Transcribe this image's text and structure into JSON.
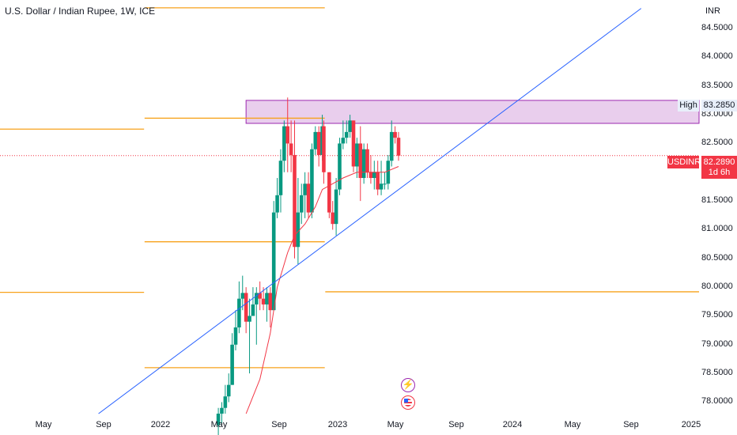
{
  "header": {
    "title": "U.S. Dollar / Indian Rupee, 1W, ICE"
  },
  "price_scale": {
    "currency": "INR",
    "labels": [
      "84.5000",
      "84.0000",
      "83.5000",
      "83.0000",
      "82.5000",
      "82.0000",
      "81.5000",
      "81.0000",
      "80.5000",
      "80.0000",
      "79.5000",
      "79.0000",
      "78.5000",
      "78.0000"
    ]
  },
  "time_scale": {
    "labels": [
      "May",
      "Sep",
      "2022",
      "May",
      "Sep",
      "2023",
      "May",
      "Sep",
      "2024",
      "May",
      "Sep",
      "2025"
    ]
  },
  "markers": {
    "high_tag": "High",
    "high_value": "83.2850",
    "symbol_tag": "USDINR",
    "last_price": "82.2890",
    "countdown": "1d 6h"
  },
  "colors": {
    "up": "#089981",
    "down": "#f23645",
    "level_line": "#f7a21b",
    "zone_fill": "#e1bee7",
    "zone_border": "#9c27b0",
    "trendline": "#2962ff",
    "moving_average": "#f23645"
  },
  "icons": [
    "lightning-event-icon",
    "us-flag-event-icon"
  ],
  "chart_data": {
    "type": "candlestick",
    "title": "U.S. Dollar / Indian Rupee, 1W, ICE",
    "interval": "1W",
    "ylim": [
      77.8,
      84.9
    ],
    "xlim": [
      "2021-03-15",
      "2025-01-25"
    ],
    "ohlc": [
      [
        "2022-05-30",
        77.6,
        77.9,
        77.4,
        77.8
      ],
      [
        "2022-06-06",
        77.8,
        78.0,
        77.6,
        77.9
      ],
      [
        "2022-06-13",
        77.9,
        78.3,
        77.8,
        78.1
      ],
      [
        "2022-06-20",
        78.1,
        78.5,
        78.0,
        78.3
      ],
      [
        "2022-06-27",
        78.3,
        79.2,
        78.3,
        79.0
      ],
      [
        "2022-07-04",
        79.0,
        79.6,
        78.9,
        79.3
      ],
      [
        "2022-07-11",
        79.3,
        80.1,
        79.2,
        79.8
      ],
      [
        "2022-07-18",
        79.8,
        80.2,
        79.6,
        79.9
      ],
      [
        "2022-07-25",
        79.9,
        80.0,
        79.2,
        79.4
      ],
      [
        "2022-08-01",
        79.4,
        79.8,
        78.5,
        79.5
      ],
      [
        "2022-08-08",
        79.5,
        80.0,
        79.5,
        79.7
      ],
      [
        "2022-08-15",
        79.7,
        80.0,
        79.0,
        79.9
      ],
      [
        "2022-08-22",
        79.9,
        80.1,
        79.6,
        79.8
      ],
      [
        "2022-08-29",
        79.8,
        80.0,
        79.6,
        79.7
      ],
      [
        "2022-09-05",
        79.7,
        80.0,
        79.4,
        79.9
      ],
      [
        "2022-09-12",
        79.9,
        80.0,
        79.3,
        79.6
      ],
      [
        "2022-09-19",
        79.6,
        81.5,
        79.6,
        81.3
      ],
      [
        "2022-09-26",
        81.3,
        81.9,
        81.2,
        81.6
      ],
      [
        "2022-10-03",
        81.6,
        82.4,
        81.3,
        82.2
      ],
      [
        "2022-10-10",
        82.2,
        82.9,
        82.0,
        82.8
      ],
      [
        "2022-10-17",
        82.8,
        83.3,
        82.0,
        82.5
      ],
      [
        "2022-10-24",
        82.5,
        82.9,
        82.0,
        82.3
      ],
      [
        "2022-10-31",
        82.3,
        82.9,
        80.5,
        80.7
      ],
      [
        "2022-11-07",
        80.7,
        81.9,
        80.4,
        81.3
      ],
      [
        "2022-11-14",
        81.3,
        81.8,
        81.1,
        81.6
      ],
      [
        "2022-11-21",
        81.6,
        82.0,
        81.2,
        81.8
      ],
      [
        "2022-11-28",
        81.8,
        82.0,
        81.2,
        81.3
      ],
      [
        "2022-12-05",
        81.3,
        82.5,
        81.2,
        82.4
      ],
      [
        "2022-12-12",
        82.4,
        82.8,
        82.3,
        82.7
      ],
      [
        "2022-12-19",
        82.7,
        82.8,
        82.1,
        82.3
      ],
      [
        "2022-12-26",
        82.3,
        83.0,
        82.2,
        82.8
      ],
      [
        "2022-12-29",
        82.8,
        82.9,
        81.8,
        82.0
      ],
      [
        "2023-01-09",
        82.0,
        82.0,
        81.2,
        81.3
      ],
      [
        "2023-01-16",
        81.3,
        81.5,
        81.0,
        81.1
      ],
      [
        "2023-01-23",
        81.1,
        81.9,
        80.9,
        81.7
      ],
      [
        "2023-01-30",
        81.7,
        82.6,
        81.6,
        82.5
      ],
      [
        "2023-02-06",
        82.5,
        82.9,
        82.4,
        82.6
      ],
      [
        "2023-02-13",
        82.6,
        82.9,
        82.5,
        82.7
      ],
      [
        "2023-02-20",
        82.7,
        83.0,
        82.6,
        82.9
      ],
      [
        "2023-02-27",
        82.9,
        82.9,
        82.0,
        82.1
      ],
      [
        "2023-03-06",
        82.1,
        82.6,
        81.9,
        82.5
      ],
      [
        "2023-03-13",
        82.5,
        82.8,
        81.5,
        81.9
      ],
      [
        "2023-03-20",
        81.9,
        82.5,
        81.8,
        82.4
      ],
      [
        "2023-03-27",
        82.4,
        82.5,
        81.9,
        82.0
      ],
      [
        "2023-04-03",
        82.0,
        82.3,
        81.8,
        81.9
      ],
      [
        "2023-04-10",
        81.9,
        82.2,
        81.7,
        82.0
      ],
      [
        "2023-04-17",
        82.0,
        82.2,
        81.6,
        81.7
      ],
      [
        "2023-04-24",
        81.7,
        82.2,
        81.6,
        81.8
      ],
      [
        "2023-05-01",
        81.8,
        82.0,
        81.7,
        81.8
      ],
      [
        "2023-05-08",
        81.8,
        82.3,
        81.7,
        82.2
      ],
      [
        "2023-05-15",
        82.2,
        82.9,
        82.1,
        82.7
      ],
      [
        "2023-05-22",
        82.7,
        82.8,
        82.5,
        82.6
      ],
      [
        "2023-05-29",
        82.6,
        82.7,
        82.2,
        82.289
      ]
    ],
    "moving_average": [
      [
        "2022-07-25",
        77.8
      ],
      [
        "2022-08-22",
        78.4
      ],
      [
        "2022-09-12",
        79.2
      ],
      [
        "2022-09-26",
        80.0
      ],
      [
        "2022-10-17",
        80.6
      ],
      [
        "2022-10-31",
        80.9
      ],
      [
        "2022-11-21",
        81.1
      ],
      [
        "2022-12-12",
        81.4
      ],
      [
        "2022-12-26",
        81.7
      ],
      [
        "2023-01-16",
        81.8
      ],
      [
        "2023-02-06",
        81.9
      ],
      [
        "2023-03-06",
        82.0
      ],
      [
        "2023-04-03",
        82.0
      ],
      [
        "2023-05-01",
        82.0
      ],
      [
        "2023-05-29",
        82.1
      ]
    ],
    "resistance_zone": {
      "from": "2022-07-25",
      "y_low": 82.85,
      "y_high": 83.25
    },
    "trendline": {
      "points": [
        [
          "2021-09-30",
          77.8
        ],
        [
          "2024-09-30",
          84.85
        ]
      ]
    },
    "levels": [
      {
        "from": "2021-03-15",
        "to": "2021-12-31",
        "y": 82.75
      },
      {
        "from": "2021-03-15",
        "to": "2021-12-31",
        "y": 79.91
      },
      {
        "from": "2022-01-01",
        "to": "2022-12-31",
        "y": 84.86
      },
      {
        "from": "2022-01-01",
        "to": "2022-12-31",
        "y": 82.94
      },
      {
        "from": "2022-01-01",
        "to": "2022-12-31",
        "y": 80.79
      },
      {
        "from": "2022-01-01",
        "to": "2022-12-31",
        "y": 78.6
      },
      {
        "from": "2023-01-01",
        "to": "2025-01-25",
        "y": 79.92
      }
    ]
  }
}
